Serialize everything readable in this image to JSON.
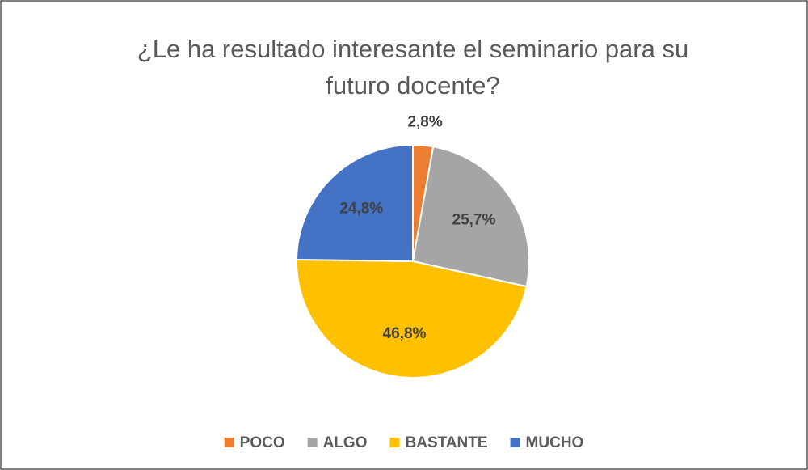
{
  "chart_data": {
    "type": "pie",
    "title": "¿Le ha resultado interesante el seminario para su futuro docente?",
    "categories": [
      "POCO",
      "ALGO",
      "BASTANTE",
      "MUCHO"
    ],
    "values": [
      2.8,
      25.7,
      46.8,
      24.8
    ],
    "value_labels": [
      "2,8%",
      "25,7%",
      "46,8%",
      "24,8%"
    ],
    "colors": [
      "#ed7d31",
      "#a5a5a5",
      "#ffc000",
      "#4472c4"
    ],
    "legend": "bottom"
  }
}
